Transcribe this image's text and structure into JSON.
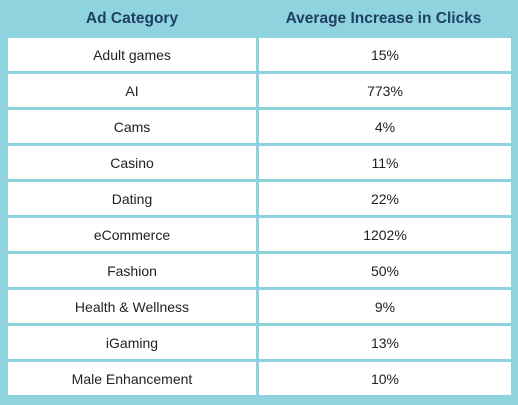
{
  "colors": {
    "frame": "#8fd3df",
    "header_text": "#1f3f63",
    "cell_bg": "#ffffff",
    "cell_text": "#222222"
  },
  "chart_data": {
    "type": "table",
    "columns": [
      "Ad Category",
      "Average Increase in Clicks"
    ],
    "rows": [
      [
        "Adult games",
        "15%"
      ],
      [
        "AI",
        "773%"
      ],
      [
        "Cams",
        "4%"
      ],
      [
        "Casino",
        "11%"
      ],
      [
        "Dating",
        "22%"
      ],
      [
        "eCommerce",
        "1202%"
      ],
      [
        "Fashion",
        "50%"
      ],
      [
        "Health & Wellness",
        "9%"
      ],
      [
        "iGaming",
        "13%"
      ],
      [
        "Male Enhancement",
        "10%"
      ]
    ]
  }
}
